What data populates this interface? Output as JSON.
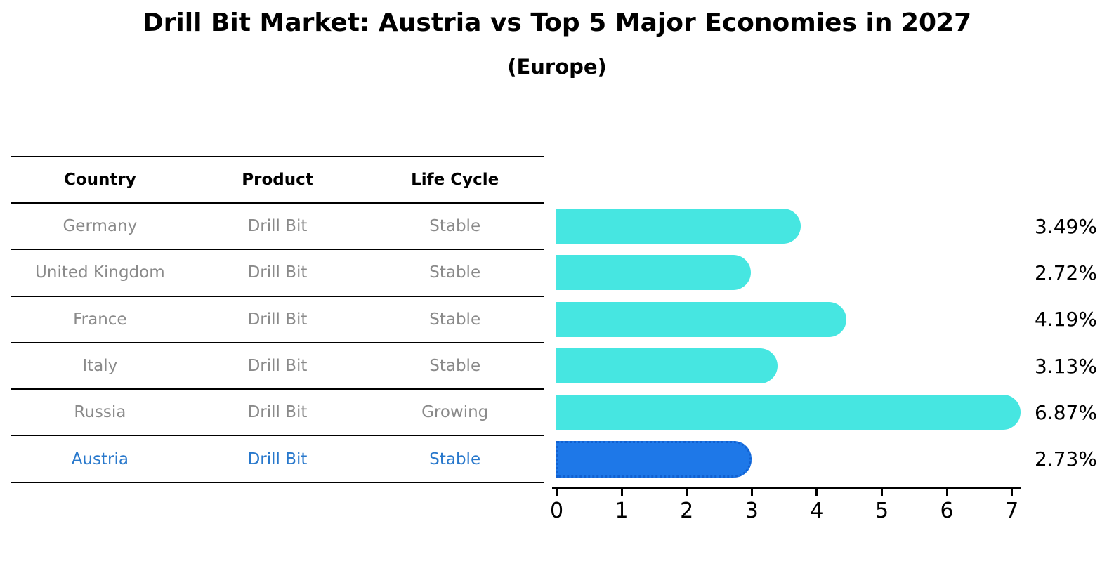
{
  "title": "Drill Bit Market: Austria vs Top 5 Major Economies in 2027",
  "subtitle": "(Europe)",
  "table": {
    "columns": [
      "Country",
      "Product",
      "Life Cycle"
    ]
  },
  "chart_data": {
    "type": "bar",
    "orientation": "horizontal",
    "title": "Drill Bit Market: Austria vs Top 5 Major Economies in 2027",
    "subtitle": "(Europe)",
    "categories": [
      "Germany",
      "United Kingdom",
      "France",
      "Italy",
      "Russia",
      "Austria"
    ],
    "values": [
      3.49,
      2.72,
      4.19,
      3.13,
      6.87,
      2.73
    ],
    "value_labels": [
      "3.49%",
      "2.72%",
      "4.19%",
      "3.13%",
      "6.87%",
      "2.73%"
    ],
    "rows": [
      {
        "country": "Germany",
        "product": "Drill Bit",
        "life_cycle": "Stable",
        "value": 3.49,
        "value_label": "3.49%",
        "highlight": false
      },
      {
        "country": "United Kingdom",
        "product": "Drill Bit",
        "life_cycle": "Stable",
        "value": 2.72,
        "value_label": "2.72%",
        "highlight": false
      },
      {
        "country": "France",
        "product": "Drill Bit",
        "life_cycle": "Stable",
        "value": 4.19,
        "value_label": "4.19%",
        "highlight": false
      },
      {
        "country": "Italy",
        "product": "Drill Bit",
        "life_cycle": "Stable",
        "value": 3.13,
        "value_label": "3.13%",
        "highlight": false
      },
      {
        "country": "Russia",
        "product": "Drill Bit",
        "life_cycle": "Growing",
        "value": 6.87,
        "value_label": "6.87%",
        "highlight": false
      },
      {
        "country": "Austria",
        "product": "Drill Bit",
        "life_cycle": "Stable",
        "value": 2.73,
        "value_label": "2.73%",
        "highlight": true
      }
    ],
    "xlim": [
      0,
      7
    ],
    "x_ticks": [
      "0",
      "1",
      "2",
      "3",
      "4",
      "5",
      "6",
      "7"
    ],
    "legend": "none",
    "grid": false,
    "colors": {
      "bar": "#46e6e1",
      "highlight_bar": "#1e78e8",
      "highlight_border": "#1161d1",
      "highlight_text": "#2878cc",
      "row_text": "#8a8a8a",
      "text": "#000000"
    }
  }
}
